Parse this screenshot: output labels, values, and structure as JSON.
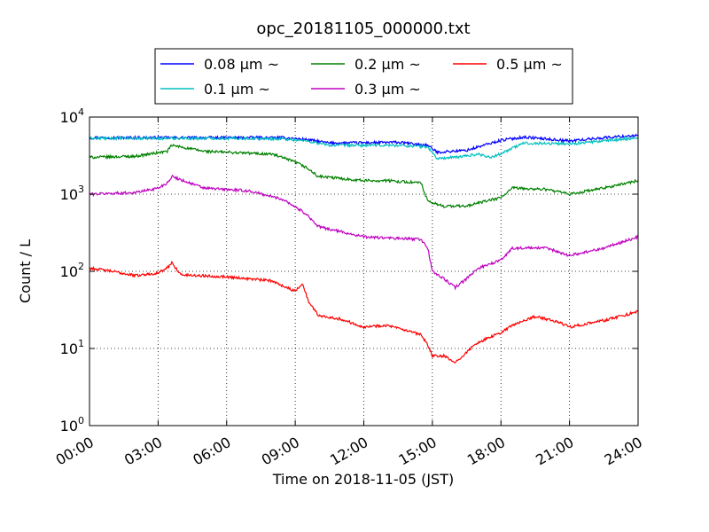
{
  "chart_data": {
    "type": "line",
    "title": "opc_20181105_000000.txt",
    "xlabel": "Time on 2018-11-05 (JST)",
    "ylabel": "Count / L",
    "x_unit": "hours",
    "xlim": [
      0,
      24
    ],
    "ylim": [
      1,
      10000
    ],
    "y_scale": "log",
    "grid": true,
    "legend_position": "top",
    "x_ticks": [
      {
        "value": 0,
        "label": "00:00"
      },
      {
        "value": 3,
        "label": "03:00"
      },
      {
        "value": 6,
        "label": "06:00"
      },
      {
        "value": 9,
        "label": "09:00"
      },
      {
        "value": 12,
        "label": "12:00"
      },
      {
        "value": 15,
        "label": "15:00"
      },
      {
        "value": 18,
        "label": "18:00"
      },
      {
        "value": 21,
        "label": "21:00"
      },
      {
        "value": 24,
        "label": "24:00"
      }
    ],
    "y_ticks": [
      {
        "value": 1,
        "base": "10",
        "exp": "0"
      },
      {
        "value": 10,
        "base": "10",
        "exp": "1"
      },
      {
        "value": 100,
        "base": "10",
        "exp": "2"
      },
      {
        "value": 1000,
        "base": "10",
        "exp": "3"
      },
      {
        "value": 10000,
        "base": "10",
        "exp": "4"
      }
    ],
    "series": [
      {
        "name": "0.08 μm ~",
        "color": "#0000ff",
        "x": [
          0,
          3,
          6,
          8.5,
          9.5,
          10.5,
          13.5,
          14.8,
          15.2,
          16.5,
          18,
          19,
          21,
          22.5,
          24
        ],
        "y": [
          5400,
          5400,
          5400,
          5400,
          5100,
          4600,
          4700,
          4300,
          3500,
          3700,
          5000,
          5500,
          4900,
          5400,
          5800
        ]
      },
      {
        "name": "0.1 μm ~",
        "color": "#00bfbf",
        "x": [
          0,
          3,
          6,
          8.5,
          9.5,
          10.5,
          13.5,
          14.8,
          15.2,
          16,
          17,
          17.6,
          18.3,
          19,
          21,
          22.5,
          24
        ],
        "y": [
          5300,
          5300,
          5300,
          5200,
          4900,
          4300,
          4300,
          4100,
          2900,
          3000,
          3300,
          3000,
          3700,
          4600,
          4500,
          4900,
          5400
        ]
      },
      {
        "name": "0.2 μm ~",
        "color": "#008000",
        "x": [
          0,
          2,
          3.4,
          3.6,
          5,
          8,
          9,
          9.5,
          10,
          12,
          13,
          14.5,
          14.8,
          15.5,
          16.5,
          17,
          18,
          18.5,
          20,
          21,
          22.5,
          24
        ],
        "y": [
          3000,
          3100,
          3600,
          4300,
          3600,
          3300,
          2600,
          2200,
          1700,
          1500,
          1500,
          1400,
          800,
          700,
          700,
          770,
          900,
          1200,
          1150,
          1000,
          1200,
          1500
        ]
      },
      {
        "name": "0.3 μm ~",
        "color": "#bf00bf",
        "x": [
          0,
          2,
          3,
          3.4,
          3.6,
          5,
          7,
          8.5,
          9.5,
          10,
          12,
          13,
          14.5,
          14.8,
          15,
          15.5,
          16,
          16.5,
          17,
          18,
          18.5,
          20,
          21,
          22.5,
          24
        ],
        "y": [
          1000,
          1050,
          1200,
          1400,
          1700,
          1200,
          1100,
          850,
          550,
          380,
          280,
          270,
          260,
          200,
          100,
          80,
          62,
          80,
          110,
          140,
          200,
          200,
          160,
          200,
          280
        ]
      },
      {
        "name": "0.5 μm ~",
        "color": "#ff0000",
        "x": [
          0,
          1,
          2,
          3,
          3.4,
          3.6,
          4,
          6,
          8,
          9,
          9.3,
          9.6,
          10,
          11,
          12,
          13,
          14.5,
          14.8,
          15,
          15.5,
          16,
          16.5,
          17,
          18,
          18.5,
          19.5,
          20.5,
          21,
          22.5,
          24
        ],
        "y": [
          110,
          100,
          88,
          95,
          110,
          130,
          90,
          85,
          75,
          55,
          70,
          40,
          27,
          24,
          19,
          20,
          15,
          11,
          8,
          8,
          6.5,
          9,
          12,
          16,
          20,
          26,
          22,
          19,
          23,
          30
        ]
      }
    ]
  }
}
